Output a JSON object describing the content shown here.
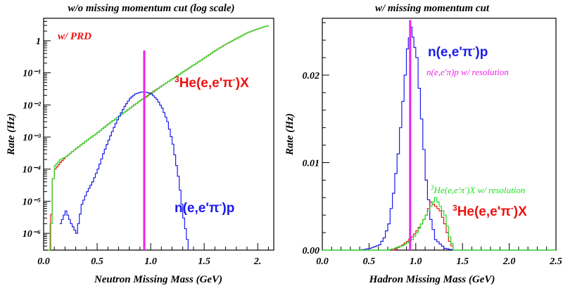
{
  "chart_data": [
    {
      "type": "line",
      "title": "w/o missing momentum cut (log scale)",
      "xlabel": "Neutron Missing Mass (GeV)",
      "ylabel": "Rate (Hz)",
      "xlim": [
        0.0,
        2.15
      ],
      "ylim": [
        3e-07,
        5
      ],
      "log_y": true,
      "x_ticks": [
        "0.0",
        "0.5",
        "1.0",
        "1.5",
        "2."
      ],
      "y_ticks": [
        "10⁻⁶",
        "10⁻⁵",
        "10⁻⁴",
        "10⁻³",
        "10⁻²",
        "10⁻¹",
        "1"
      ],
      "annotations": [
        {
          "text": "w/ PRD",
          "color": "#ee1111"
        },
        {
          "text": "³He(e,e'π⁻)X",
          "color": "#ee1111"
        },
        {
          "text": "n(e,e'π⁻)p",
          "color": "#1a1aee"
        }
      ],
      "series": [
        {
          "color": "#ee1111",
          "x": [
            0.05,
            0.08,
            0.1,
            0.15,
            0.2,
            0.3,
            0.4,
            0.5,
            0.6,
            0.7,
            0.8,
            0.9,
            0.95,
            1.0,
            1.1,
            1.2,
            1.3,
            1.4,
            1.5,
            1.6,
            1.7,
            1.8,
            1.9,
            2.0,
            2.1
          ],
          "y": [
            3e-07,
            5e-05,
            0.0001,
            0.00016,
            0.00024,
            0.00045,
            0.0008,
            0.0014,
            0.0026,
            0.0045,
            0.008,
            0.014,
            0.018,
            0.024,
            0.04,
            0.066,
            0.11,
            0.18,
            0.3,
            0.5,
            0.8,
            1.2,
            1.8,
            2.4,
            3.0
          ]
        },
        {
          "color": "#22dd22",
          "x": [
            0.04,
            0.06,
            0.08,
            0.1,
            0.15,
            0.2,
            0.3,
            0.4,
            0.5,
            0.6,
            0.7,
            0.8,
            0.9,
            0.95,
            1.0,
            1.1,
            1.2,
            1.3,
            1.4,
            1.5,
            1.6,
            1.7,
            1.8,
            1.9,
            2.0,
            2.1
          ],
          "y": [
            3e-07,
            2e-06,
            5e-05,
            0.00013,
            0.0002,
            0.00024,
            0.00045,
            0.0008,
            0.0014,
            0.0026,
            0.0045,
            0.008,
            0.014,
            0.017,
            0.023,
            0.04,
            0.066,
            0.11,
            0.18,
            0.3,
            0.5,
            0.8,
            1.2,
            1.8,
            2.4,
            3.0
          ]
        },
        {
          "color": "#1a1aee",
          "x": [
            0.15,
            0.2,
            0.25,
            0.3,
            0.35,
            0.4,
            0.45,
            0.5,
            0.55,
            0.6,
            0.65,
            0.7,
            0.75,
            0.8,
            0.85,
            0.9,
            0.95,
            1.0,
            1.05,
            1.1,
            1.15,
            1.2,
            1.25,
            1.3,
            1.35
          ],
          "y": [
            2e-06,
            5e-06,
            2e-06,
            1e-06,
            8e-06,
            2e-05,
            4e-05,
            0.0001,
            0.0003,
            0.0008,
            0.002,
            0.0045,
            0.009,
            0.016,
            0.022,
            0.025,
            0.025,
            0.022,
            0.015,
            0.008,
            0.003,
            0.0006,
            6e-05,
            3e-06,
            3e-07
          ]
        },
        {
          "color": "#ee22ee",
          "x": [
            0.94,
            0.94
          ],
          "y": [
            3e-07,
            0.5
          ]
        }
      ]
    },
    {
      "type": "line",
      "title": "w/ missing momentum cut",
      "xlabel": "Hadron Missing Mass (GeV)",
      "ylabel": "Rate (Hz)",
      "xlim": [
        0.0,
        2.5
      ],
      "ylim": [
        0.0,
        0.0265
      ],
      "x_ticks": [
        "0.0",
        "0.5",
        "1.0",
        "1.5",
        "2.0",
        "2.5"
      ],
      "y_ticks": [
        "0.00",
        "0.01",
        "0.02"
      ],
      "annotations": [
        {
          "text": "n(e,e'π⁻)p",
          "color": "#1a1aee"
        },
        {
          "text": "n(e,e'π)p w/ resolution",
          "color": "#ee22ee"
        },
        {
          "text": "³He(e,e'π)X w/ resolution",
          "color": "#22dd22"
        },
        {
          "text": "³He(e,e'π⁻)X",
          "color": "#ee1111"
        }
      ],
      "series": [
        {
          "color": "#1a1aee",
          "x": [
            0.4,
            0.5,
            0.6,
            0.65,
            0.7,
            0.75,
            0.8,
            0.85,
            0.9,
            0.94,
            1.0,
            1.05,
            1.1,
            1.15,
            1.2,
            1.3,
            1.4
          ],
          "y": [
            0.0,
            0.0002,
            0.0006,
            0.0014,
            0.003,
            0.0065,
            0.011,
            0.017,
            0.023,
            0.0255,
            0.022,
            0.015,
            0.008,
            0.0035,
            0.0012,
            0.0002,
            0.0
          ]
        },
        {
          "color": "#ee1111",
          "x": [
            0.75,
            0.85,
            0.9,
            0.95,
            1.0,
            1.05,
            1.1,
            1.15,
            1.2,
            1.25,
            1.3,
            1.35,
            1.4
          ],
          "y": [
            0.0,
            0.0006,
            0.001,
            0.0015,
            0.0022,
            0.003,
            0.004,
            0.0055,
            0.005,
            0.0045,
            0.003,
            0.001,
            0.0
          ]
        },
        {
          "color": "#22dd22",
          "x": [
            0.0,
            0.7,
            0.85,
            0.95,
            1.0,
            1.05,
            1.1,
            1.15,
            1.2,
            1.25,
            1.3,
            1.35,
            1.4,
            2.5
          ],
          "y": [
            0.0,
            0.0,
            0.0005,
            0.0012,
            0.002,
            0.003,
            0.004,
            0.005,
            0.006,
            0.005,
            0.004,
            0.0015,
            0.0,
            0.0
          ]
        },
        {
          "color": "#ee22ee",
          "x": [
            0.94,
            0.94
          ],
          "y": [
            0.0,
            0.0263
          ]
        }
      ]
    }
  ]
}
